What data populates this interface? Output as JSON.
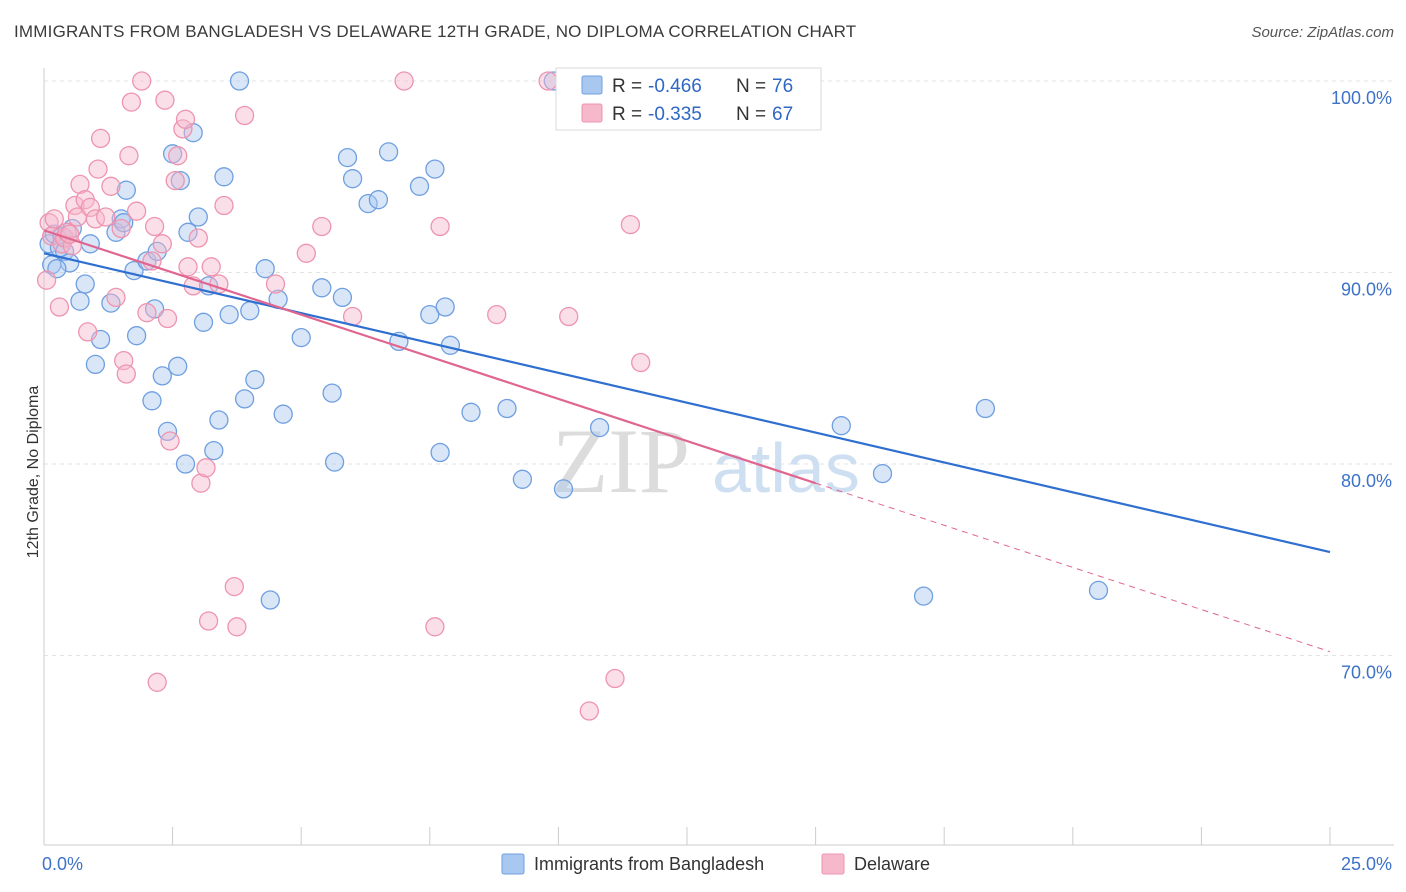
{
  "header": {
    "title": "IMMIGRANTS FROM BANGLADESH VS DELAWARE 12TH GRADE, NO DIPLOMA CORRELATION CHART",
    "source": "Source: ZipAtlas.com"
  },
  "watermark": {
    "zip": "ZIP",
    "atlas": "atlas"
  },
  "legend": {
    "rows": [
      {
        "r_label": "R =",
        "r_value": "-0.466",
        "n_label": "N =",
        "n_value": "76",
        "color": "#a9c8f0"
      },
      {
        "r_label": "R =",
        "r_value": "-0.335",
        "n_label": "N =",
        "n_value": "67",
        "color": "#f6b9cc"
      }
    ]
  },
  "chart_data": {
    "type": "scatter",
    "title": "IMMIGRANTS FROM BANGLADESH VS DELAWARE 12TH GRADE, NO DIPLOMA CORRELATION CHART",
    "xlabel": "",
    "ylabel": "12th Grade, No Diploma",
    "xlim": [
      0,
      25
    ],
    "ylim": [
      59,
      101.5
    ],
    "x_tick_labels": [
      "0.0%",
      "25.0%"
    ],
    "y_ticks": [
      100,
      90,
      80,
      70
    ],
    "y_tick_labels": [
      "100.0%",
      "90.0%",
      "80.0%",
      "70.0%"
    ],
    "grid": true,
    "legend_position": "top-center",
    "series": [
      {
        "name": "Immigrants from Bangladesh",
        "color": "#6f9fe0",
        "fill": "#a9c8f0",
        "line_color": "#2f6fd0",
        "trend": {
          "x": [
            0,
            25
          ],
          "y": [
            91.0,
            75.4
          ]
        },
        "points": [
          [
            0.1,
            91.5
          ],
          [
            0.15,
            90.4
          ],
          [
            0.2,
            92.0
          ],
          [
            0.3,
            91.3
          ],
          [
            0.35,
            91.9
          ],
          [
            0.4,
            91.1
          ],
          [
            0.5,
            90.5
          ],
          [
            0.55,
            92.3
          ],
          [
            0.7,
            88.5
          ],
          [
            0.8,
            89.4
          ],
          [
            0.9,
            91.5
          ],
          [
            1.0,
            85.2
          ],
          [
            1.1,
            86.5
          ],
          [
            1.3,
            88.4
          ],
          [
            1.4,
            92.1
          ],
          [
            1.5,
            92.8
          ],
          [
            1.6,
            94.3
          ],
          [
            1.75,
            90.1
          ],
          [
            1.8,
            86.7
          ],
          [
            2.0,
            90.6
          ],
          [
            2.1,
            83.3
          ],
          [
            2.15,
            88.1
          ],
          [
            2.2,
            91.1
          ],
          [
            2.3,
            84.6
          ],
          [
            2.4,
            81.7
          ],
          [
            2.5,
            96.2
          ],
          [
            2.6,
            85.1
          ],
          [
            2.65,
            94.8
          ],
          [
            2.75,
            80.0
          ],
          [
            2.8,
            92.1
          ],
          [
            2.9,
            97.3
          ],
          [
            3.0,
            92.9
          ],
          [
            3.1,
            87.4
          ],
          [
            3.2,
            89.3
          ],
          [
            3.3,
            80.7
          ],
          [
            3.4,
            82.3
          ],
          [
            3.5,
            95.0
          ],
          [
            3.6,
            87.8
          ],
          [
            3.8,
            100.0
          ],
          [
            3.9,
            83.4
          ],
          [
            4.0,
            88.0
          ],
          [
            4.1,
            84.4
          ],
          [
            4.3,
            90.2
          ],
          [
            4.4,
            72.9
          ],
          [
            4.55,
            88.6
          ],
          [
            4.65,
            82.6
          ],
          [
            5.0,
            86.6
          ],
          [
            5.4,
            89.2
          ],
          [
            5.6,
            83.7
          ],
          [
            5.65,
            80.1
          ],
          [
            5.8,
            88.7
          ],
          [
            5.9,
            96.0
          ],
          [
            6.0,
            94.9
          ],
          [
            6.3,
            93.6
          ],
          [
            6.5,
            93.8
          ],
          [
            6.7,
            96.3
          ],
          [
            6.9,
            86.4
          ],
          [
            7.3,
            94.5
          ],
          [
            7.5,
            87.8
          ],
          [
            7.6,
            95.4
          ],
          [
            7.7,
            80.6
          ],
          [
            7.8,
            88.2
          ],
          [
            7.9,
            86.2
          ],
          [
            8.3,
            82.7
          ],
          [
            9.0,
            82.9
          ],
          [
            9.3,
            79.2
          ],
          [
            9.9,
            100.0
          ],
          [
            10.1,
            78.7
          ],
          [
            10.8,
            81.9
          ],
          [
            15.5,
            82.0
          ],
          [
            16.3,
            79.5
          ],
          [
            17.1,
            73.1
          ],
          [
            18.3,
            82.9
          ],
          [
            20.5,
            73.4
          ],
          [
            0.25,
            90.2
          ],
          [
            1.55,
            92.6
          ]
        ]
      },
      {
        "name": "Delaware",
        "color": "#ee94b0",
        "fill": "#f6b9cc",
        "line_color": "#e0668f",
        "trend": {
          "x": [
            0,
            15
          ],
          "y": [
            92.2,
            79.0
          ]
        },
        "trend_dashed": {
          "x": [
            15,
            25
          ],
          "y": [
            79.0,
            70.2
          ]
        },
        "points": [
          [
            0.05,
            89.6
          ],
          [
            0.1,
            92.6
          ],
          [
            0.15,
            91.9
          ],
          [
            0.2,
            92.8
          ],
          [
            0.3,
            88.2
          ],
          [
            0.35,
            91.5
          ],
          [
            0.4,
            91.8
          ],
          [
            0.45,
            92.1
          ],
          [
            0.55,
            91.4
          ],
          [
            0.6,
            93.5
          ],
          [
            0.65,
            92.9
          ],
          [
            0.7,
            94.6
          ],
          [
            0.8,
            93.8
          ],
          [
            0.85,
            86.9
          ],
          [
            0.9,
            93.4
          ],
          [
            1.0,
            92.8
          ],
          [
            1.05,
            95.4
          ],
          [
            1.1,
            97.0
          ],
          [
            1.2,
            92.9
          ],
          [
            1.3,
            94.5
          ],
          [
            1.4,
            88.7
          ],
          [
            1.5,
            92.3
          ],
          [
            1.55,
            85.4
          ],
          [
            1.6,
            84.7
          ],
          [
            1.65,
            96.1
          ],
          [
            1.7,
            98.9
          ],
          [
            1.8,
            93.2
          ],
          [
            1.9,
            100.0
          ],
          [
            2.0,
            87.9
          ],
          [
            2.1,
            90.6
          ],
          [
            2.15,
            92.4
          ],
          [
            2.2,
            68.6
          ],
          [
            2.3,
            91.5
          ],
          [
            2.35,
            99.0
          ],
          [
            2.4,
            87.6
          ],
          [
            2.45,
            81.2
          ],
          [
            2.55,
            94.8
          ],
          [
            2.6,
            96.1
          ],
          [
            2.7,
            97.5
          ],
          [
            2.75,
            98.0
          ],
          [
            2.8,
            90.3
          ],
          [
            2.9,
            89.3
          ],
          [
            3.0,
            91.8
          ],
          [
            3.05,
            79.0
          ],
          [
            3.15,
            79.8
          ],
          [
            3.2,
            71.8
          ],
          [
            3.25,
            90.3
          ],
          [
            3.4,
            89.4
          ],
          [
            3.5,
            93.5
          ],
          [
            3.7,
            73.6
          ],
          [
            3.75,
            71.5
          ],
          [
            3.9,
            98.2
          ],
          [
            4.5,
            89.4
          ],
          [
            5.1,
            91.0
          ],
          [
            5.4,
            92.4
          ],
          [
            6.0,
            87.7
          ],
          [
            7.0,
            100.0
          ],
          [
            7.6,
            71.5
          ],
          [
            7.7,
            92.4
          ],
          [
            8.8,
            87.8
          ],
          [
            9.8,
            100.0
          ],
          [
            10.2,
            87.7
          ],
          [
            10.6,
            67.1
          ],
          [
            11.1,
            68.8
          ],
          [
            11.4,
            92.5
          ],
          [
            11.6,
            85.3
          ],
          [
            0.5,
            92.0
          ]
        ]
      }
    ]
  }
}
